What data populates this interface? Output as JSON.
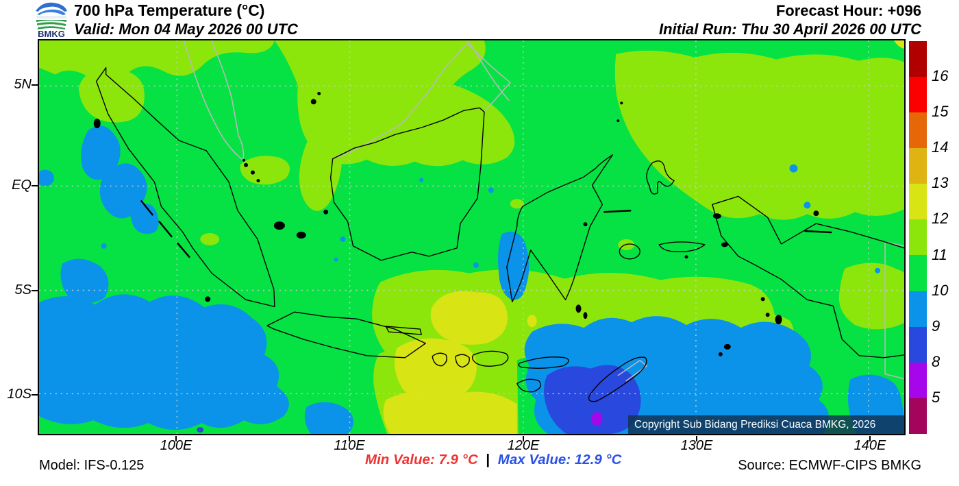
{
  "header": {
    "logo_text": "BMKG",
    "title": "700 hPa Temperature (°C)",
    "valid": "Valid: Mon 04 May 2026 00 UTC",
    "forecast_hour": "Forecast Hour: +096",
    "initial_run": "Initial Run: Thu 30 April 2026 00 UTC"
  },
  "axes": {
    "lat": [
      "5N",
      "EQ",
      "5S",
      "10S"
    ],
    "lon": [
      "100E",
      "110E",
      "120E",
      "130E",
      "140E"
    ]
  },
  "colorbar": {
    "scale_values": [
      5,
      8,
      9,
      10,
      11,
      12,
      13,
      14,
      15,
      16
    ],
    "segments": [
      {
        "color": "dark_red",
        "label": "16"
      },
      {
        "color": "red",
        "label": "15"
      },
      {
        "color": "orange",
        "label": "14"
      },
      {
        "color": "golden",
        "label": "13"
      },
      {
        "color": "yellow",
        "label": "12"
      },
      {
        "color": "yellow_green",
        "label": "11"
      },
      {
        "color": "green",
        "label": "10"
      },
      {
        "color": "light_blue",
        "label": "9"
      },
      {
        "color": "royal_blue",
        "label": "8"
      },
      {
        "color": "magenta",
        "label": "5"
      },
      {
        "color": "maroon",
        "label": ""
      }
    ]
  },
  "palette": {
    "dark_red": "#b00000",
    "red": "#fb0000",
    "orange": "#e56708",
    "golden": "#dfb412",
    "yellow": "#d9e414",
    "yellow_green": "#8de60b",
    "green": "#06e243",
    "light_blue": "#0a93e8",
    "royal_blue": "#2948dd",
    "magenta": "#a506ea",
    "maroon": "#a3045c",
    "grid": "#cccccc",
    "coast_black": "#000000",
    "coast_gray": "#b9b9b9",
    "min_red": "#ee3333",
    "max_blue": "#2b51e5"
  },
  "map": {
    "copyright": "Copyright Sub Bidang Prediksi Cuaca BMKG, 2026",
    "parameter": "700 hPa Temperature",
    "units": "°C"
  },
  "footer": {
    "model": "Model: IFS-0.125",
    "min_value": "Min Value: 7.9 °C",
    "separator": "|",
    "max_value": "Max Value: 12.9 °C",
    "source": "Source: ECMWF-CIPS BMKG"
  }
}
